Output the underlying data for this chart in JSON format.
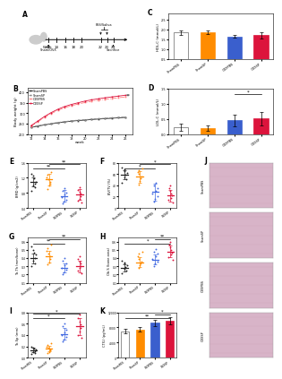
{
  "groups": [
    "ShamPBS",
    "ShamSP",
    "OVXPBS",
    "OVXSP"
  ],
  "dot_colors": [
    "#222222",
    "#FF8C00",
    "#4169E1",
    "#DC143C"
  ],
  "bar_colors": [
    "#FFFFFF",
    "#FF8C00",
    "#3A5FCD",
    "#DC143C"
  ],
  "bar_edge_colors": [
    "#666666",
    "#FF8C00",
    "#3A5FCD",
    "#DC143C"
  ],
  "panel_C": {
    "ylabel": "HDL-C (mmol/L)",
    "ylim": [
      0.5,
      2.8
    ],
    "yticks": [
      0.5,
      1.0,
      1.5,
      2.0,
      2.5
    ],
    "values": [
      1.85,
      1.85,
      1.65,
      1.7
    ],
    "errors": [
      0.12,
      0.1,
      0.08,
      0.15
    ]
  },
  "panel_D": {
    "ylabel": "LDL-C (mmol/L)",
    "ylim": [
      0.0,
      1.5
    ],
    "yticks": [
      0.0,
      0.5,
      1.0,
      1.5
    ],
    "values": [
      0.22,
      0.2,
      0.45,
      0.52
    ],
    "errors": [
      0.12,
      0.1,
      0.18,
      0.22
    ],
    "sig": [
      [
        2,
        3,
        "*"
      ]
    ]
  },
  "panel_E": {
    "ylabel": "BMD (g/cm2)",
    "ylim": [
      0.4,
      1.6
    ],
    "yticks": [
      0.4,
      0.8,
      1.2,
      1.6
    ],
    "means": [
      1.1,
      1.15,
      0.72,
      0.75
    ],
    "errors": [
      0.12,
      0.15,
      0.16,
      0.14
    ],
    "dots": [
      [
        0.85,
        0.95,
        1.0,
        1.05,
        1.1,
        1.18,
        1.25,
        1.3
      ],
      [
        0.9,
        1.0,
        1.05,
        1.1,
        1.15,
        1.22,
        1.28,
        1.35
      ],
      [
        0.52,
        0.58,
        0.62,
        0.68,
        0.75,
        0.8,
        0.85,
        0.92
      ],
      [
        0.55,
        0.6,
        0.65,
        0.72,
        0.78,
        0.82,
        0.88,
        0.95
      ]
    ],
    "sig": [
      [
        0,
        2,
        "**"
      ],
      [
        1,
        3,
        "**"
      ]
    ]
  },
  "panel_F": {
    "ylabel": "BV/TV (%)",
    "ylim": [
      0,
      80
    ],
    "yticks": [
      0,
      20,
      40,
      60,
      80
    ],
    "means": [
      58,
      55,
      28,
      22
    ],
    "errors": [
      8,
      10,
      15,
      10
    ],
    "dots": [
      [
        45,
        50,
        54,
        58,
        62,
        65,
        68,
        72
      ],
      [
        42,
        48,
        52,
        56,
        60,
        63,
        67,
        70
      ],
      [
        12,
        16,
        20,
        25,
        30,
        35,
        40,
        45
      ],
      [
        10,
        14,
        18,
        22,
        26,
        30,
        35,
        40
      ]
    ],
    "sig": [
      [
        0,
        2,
        "*"
      ],
      [
        1,
        3,
        "*"
      ]
    ]
  },
  "panel_G": {
    "ylabel": "Tb.Th (mm/bone)",
    "ylim": [
      0.1,
      0.65
    ],
    "yticks": [
      0.1,
      0.2,
      0.3,
      0.4,
      0.5,
      0.6
    ],
    "means": [
      0.4,
      0.42,
      0.28,
      0.3
    ],
    "errors": [
      0.06,
      0.07,
      0.05,
      0.07
    ],
    "dots": [
      [
        0.3,
        0.33,
        0.37,
        0.4,
        0.44,
        0.47,
        0.5,
        0.54
      ],
      [
        0.32,
        0.35,
        0.39,
        0.42,
        0.46,
        0.49,
        0.52,
        0.56
      ],
      [
        0.2,
        0.23,
        0.26,
        0.28,
        0.31,
        0.34,
        0.37,
        0.4
      ],
      [
        0.22,
        0.25,
        0.28,
        0.3,
        0.33,
        0.36,
        0.39,
        0.42
      ]
    ],
    "sig": [
      [
        0,
        2,
        "**"
      ],
      [
        1,
        3,
        "**"
      ]
    ]
  },
  "panel_H": {
    "ylabel": "Ob.S (bone area)",
    "ylim": [
      0.1,
      0.65
    ],
    "yticks": [
      0.1,
      0.2,
      0.3,
      0.4,
      0.5,
      0.6
    ],
    "means": [
      0.28,
      0.35,
      0.38,
      0.48
    ],
    "errors": [
      0.04,
      0.06,
      0.06,
      0.07
    ],
    "dots": [
      [
        0.22,
        0.25,
        0.27,
        0.29,
        0.31,
        0.33,
        0.35,
        0.37
      ],
      [
        0.28,
        0.31,
        0.34,
        0.36,
        0.39,
        0.42,
        0.45,
        0.48
      ],
      [
        0.3,
        0.33,
        0.36,
        0.39,
        0.42,
        0.45,
        0.48,
        0.51
      ],
      [
        0.38,
        0.41,
        0.44,
        0.47,
        0.5,
        0.53,
        0.56,
        0.6
      ]
    ],
    "sig": [
      [
        0,
        3,
        "*"
      ],
      [
        2,
        3,
        "**"
      ]
    ]
  },
  "panel_I": {
    "ylabel": "Tb.Sp (mm)",
    "ylim": [
      0.0,
      0.8
    ],
    "yticks": [
      0.0,
      0.2,
      0.4,
      0.6,
      0.8
    ],
    "means": [
      0.13,
      0.16,
      0.42,
      0.55
    ],
    "errors": [
      0.04,
      0.05,
      0.1,
      0.15
    ],
    "dots": [
      [
        0.06,
        0.08,
        0.1,
        0.12,
        0.14,
        0.16,
        0.18,
        0.2
      ],
      [
        0.08,
        0.1,
        0.13,
        0.15,
        0.18,
        0.2,
        0.23,
        0.25
      ],
      [
        0.28,
        0.32,
        0.36,
        0.4,
        0.45,
        0.5,
        0.55,
        0.6
      ],
      [
        0.35,
        0.4,
        0.46,
        0.52,
        0.58,
        0.64,
        0.7,
        0.76
      ]
    ],
    "sig": [
      [
        0,
        2,
        "*"
      ],
      [
        0,
        3,
        "*"
      ]
    ]
  },
  "panel_K": {
    "ylabel": "CTX-I (pg/mL)",
    "ylim": [
      0,
      12000
    ],
    "yticks": [
      0,
      4000,
      8000,
      12000
    ],
    "values": [
      7000,
      7500,
      9200,
      9800
    ],
    "errors": [
      600,
      700,
      800,
      900
    ],
    "sig": [
      [
        0,
        3,
        "**"
      ],
      [
        2,
        3,
        "*"
      ]
    ]
  },
  "panel_B": {
    "ylabel": "Body weight (g)",
    "xlabel": "week",
    "ylim": [
      200,
      420
    ],
    "yticks": [
      200,
      250,
      300,
      350,
      400
    ],
    "weeks": [
      12,
      13,
      14,
      15,
      16,
      17,
      18,
      19,
      20,
      21,
      22,
      23,
      24,
      25,
      26
    ],
    "series": {
      "ShamPBS": [
        232,
        238,
        244,
        249,
        254,
        258,
        262,
        265,
        267,
        270,
        272,
        274,
        276,
        278,
        280
      ],
      "ShamSP": [
        234,
        240,
        246,
        251,
        256,
        260,
        264,
        267,
        269,
        272,
        274,
        276,
        278,
        280,
        282
      ],
      "OVXPBS": [
        238,
        258,
        280,
        298,
        314,
        326,
        336,
        344,
        351,
        357,
        362,
        366,
        370,
        374,
        378
      ],
      "OVXSP": [
        240,
        262,
        284,
        303,
        319,
        332,
        342,
        350,
        358,
        364,
        369,
        374,
        378,
        382,
        386
      ]
    },
    "line_colors": [
      "#222222",
      "#888888",
      "#FF8080",
      "#DC143C"
    ],
    "line_styles": [
      "-",
      "--",
      "-.",
      "-"
    ],
    "markers": [
      "s",
      "s",
      "s",
      "s"
    ]
  },
  "j_labels": [
    "ShamPBS",
    "ShamSP",
    "OVXPBS",
    "OVXSP"
  ],
  "j_color": "#D8B4C8"
}
